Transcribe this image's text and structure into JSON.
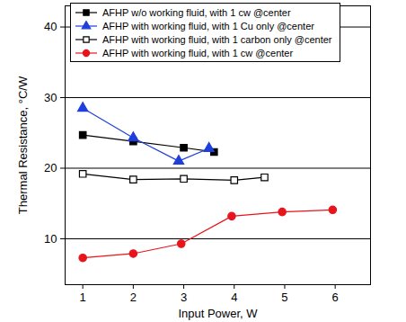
{
  "chart_data": {
    "type": "line",
    "x_label": "Input Power, W",
    "y_label": "Thermal Resistance, °C/W",
    "xlim": [
      0.65,
      6.7
    ],
    "xticks": [
      1,
      2,
      3,
      4,
      5,
      6
    ],
    "ylim": [
      3.5,
      43
    ],
    "yticks": [
      10,
      20,
      30,
      40
    ],
    "grid": true,
    "legend": "upper left",
    "series": [
      {
        "name": "AFHP w/o working fluid, with 1 cw @center",
        "color": "#000000",
        "marker": "square",
        "line_style": "solid",
        "x": [
          1,
          2,
          3,
          3.6
        ],
        "values": [
          24.7,
          23.8,
          22.9,
          22.3
        ]
      },
      {
        "name": "AFHP with working fluid, with 1 Cu only @center",
        "color": "#1f3fdd",
        "marker": "triangle",
        "line_style": "solid",
        "x": [
          1,
          2,
          2.9,
          3.5
        ],
        "values": [
          28.5,
          24.3,
          21.0,
          22.8
        ]
      },
      {
        "name": "AFHP with working fluid, with 1 carbon only @center",
        "color": "#000000",
        "marker": "square-open",
        "line_style": "solid",
        "x": [
          1,
          2,
          3,
          4,
          4.6
        ],
        "values": [
          19.2,
          18.4,
          18.5,
          18.3,
          18.7
        ]
      },
      {
        "name": "AFHP with working fluid, with 1 cw @center",
        "color": "#e8141c",
        "marker": "circle",
        "line_style": "solid",
        "x": [
          1,
          2,
          2.95,
          3.95,
          4.95,
          5.95
        ],
        "values": [
          7.3,
          7.9,
          9.3,
          13.2,
          13.8,
          14.1
        ]
      }
    ]
  }
}
